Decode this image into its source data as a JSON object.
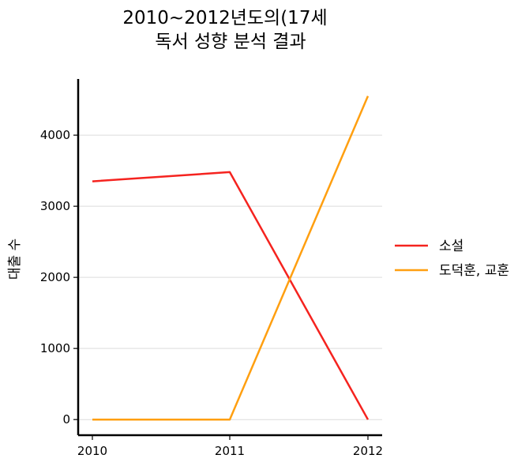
{
  "chart_data": {
    "type": "line",
    "title_lines": [
      "2010~2012년도의(17세",
      "독서 성향 분석 결과"
    ],
    "xlabel": "",
    "ylabel": "대출 수",
    "categories": [
      "2010",
      "2011",
      "2012"
    ],
    "ylim": [
      -220,
      4790
    ],
    "yticks": [
      0,
      1000,
      2000,
      3000,
      4000
    ],
    "grid": "horizontal",
    "legend_position": "right",
    "series": [
      {
        "name": "소설",
        "color": "#f5231f",
        "values": [
          3350,
          3480,
          0
        ]
      },
      {
        "name": "도덕훈, 교훈",
        "color": "#ff9f10",
        "values": [
          0,
          0,
          4550
        ]
      }
    ]
  }
}
